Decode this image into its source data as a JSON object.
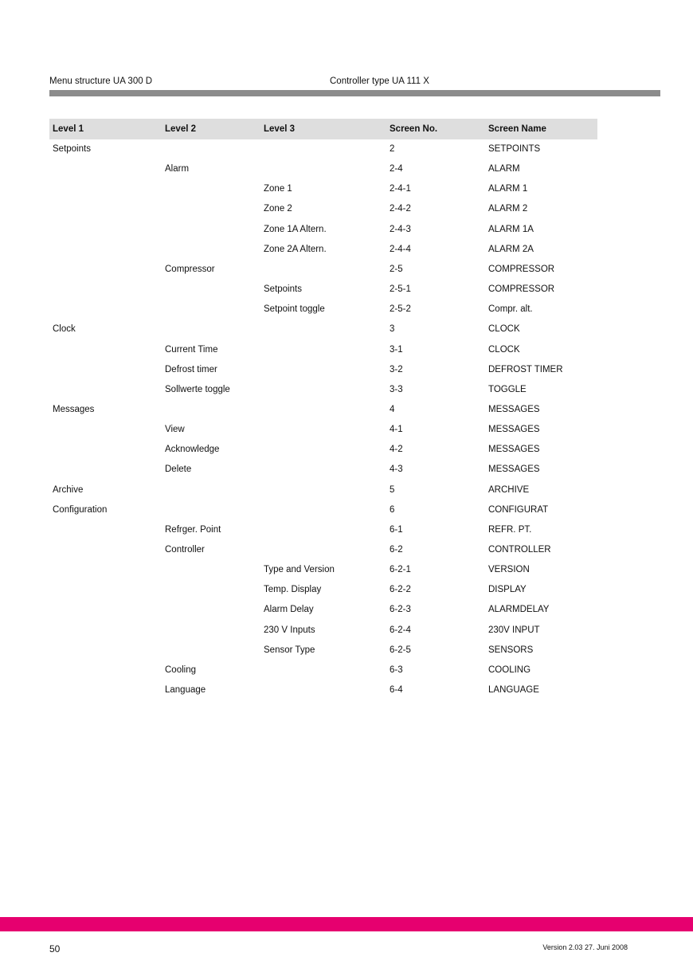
{
  "header": {
    "left": "Menu structure UA 300 D",
    "center": "Controller type UA 111 X"
  },
  "table": {
    "columns": [
      "Level 1",
      "Level 2",
      "Level 3",
      "Screen  No.",
      "Screen  Name"
    ],
    "rows": [
      [
        "Setpoints",
        "",
        "",
        "2",
        "SETPOINTS"
      ],
      [
        "",
        "Alarm",
        "",
        "2-4",
        "ALARM"
      ],
      [
        "",
        "",
        "Zone 1",
        "2-4-1",
        "ALARM 1"
      ],
      [
        "",
        "",
        "Zone 2",
        "2-4-2",
        "ALARM 2"
      ],
      [
        "",
        "",
        "Zone 1A Altern.",
        "2-4-3",
        "ALARM 1A"
      ],
      [
        "",
        "",
        "Zone 2A Altern.",
        "2-4-4",
        "ALARM 2A"
      ],
      [
        "",
        "Compressor",
        "",
        "2-5",
        "COMPRESSOR"
      ],
      [
        "",
        "",
        "Setpoints",
        "2-5-1",
        "COMPRESSOR"
      ],
      [
        "",
        "",
        "Setpoint toggle",
        "2-5-2",
        "Compr. alt."
      ],
      [
        "Clock",
        "",
        "",
        "3",
        "CLOCK"
      ],
      [
        "",
        "Current Time",
        "",
        "3-1",
        "CLOCK"
      ],
      [
        "",
        "Defrost timer",
        "",
        "3-2",
        "DEFROST TIMER"
      ],
      [
        "",
        "Sollwerte toggle",
        "",
        "3-3",
        "TOGGLE"
      ],
      [
        "Messages",
        "",
        "",
        "4",
        "MESSAGES"
      ],
      [
        "",
        "View",
        "",
        "4-1",
        "MESSAGES"
      ],
      [
        "",
        "Acknowledge",
        "",
        "4-2",
        "MESSAGES"
      ],
      [
        "",
        "Delete",
        "",
        "4-3",
        "MESSAGES"
      ],
      [
        "Archive",
        "",
        "",
        "5",
        "ARCHIVE"
      ],
      [
        "Configuration",
        "",
        "",
        "6",
        "CONFIGURAT"
      ],
      [
        "",
        "Refrger. Point",
        "",
        "6-1",
        "REFR. PT."
      ],
      [
        "",
        "Controller",
        "",
        "6-2",
        "CONTROLLER"
      ],
      [
        "",
        "",
        "Type and Version",
        "6-2-1",
        "VERSION"
      ],
      [
        "",
        "",
        "Temp. Display",
        "6-2-2",
        "DISPLAY"
      ],
      [
        "",
        "",
        "Alarm Delay",
        "6-2-3",
        "ALARMDELAY"
      ],
      [
        "",
        "",
        "230 V Inputs",
        "6-2-4",
        "230V INPUT"
      ],
      [
        "",
        "",
        "Sensor Type",
        "6-2-5",
        "SENSORS"
      ],
      [
        "",
        "Cooling",
        "",
        "6-3",
        "COOLING"
      ],
      [
        "",
        "Language",
        "",
        "6-4",
        "LANGUAGE"
      ]
    ]
  },
  "footer": {
    "page": "50",
    "version": "Version 2.03   27. Juni 2008"
  },
  "colors": {
    "accent_bar": "#e6006f",
    "header_bar": "#8c8c8c",
    "table_header": "#dedede"
  }
}
